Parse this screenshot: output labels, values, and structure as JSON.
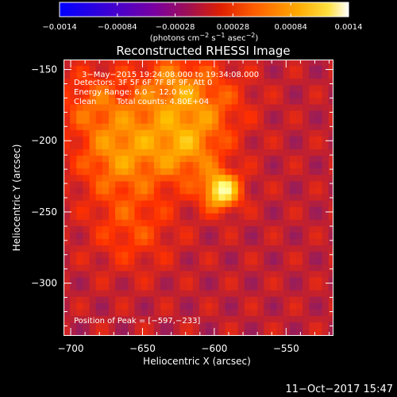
{
  "chart_data": {
    "type": "heatmap",
    "title": "Reconstructed RHESSI Image",
    "xlabel": "Heliocentric X (arcsec)",
    "ylabel": "Heliocentric Y (arcsec)",
    "xlim": [
      -705,
      -517
    ],
    "ylim": [
      -337,
      -143
    ],
    "xticks": [
      -700,
      -650,
      -600,
      -550
    ],
    "xtick_labels": [
      "−700",
      "−650",
      "−600",
      "−550"
    ],
    "yticks": [
      -150,
      -200,
      -250,
      -300
    ],
    "ytick_labels": [
      "−150",
      "−200",
      "−250",
      "−300"
    ],
    "colorbar": {
      "range": [
        -0.0014,
        0.0014
      ],
      "ticks": [
        -0.0014,
        -0.00084,
        -0.00028,
        0.00028,
        0.00084,
        0.0014
      ],
      "tick_labels": [
        "−0.0014",
        "−0.00084",
        "−0.00028",
        "0.00028",
        "0.00084",
        "0.0014"
      ],
      "unit_label": {
        "base": "(photons cm",
        "sup1": "−2",
        "mid1": " s",
        "sup2": "−1",
        "mid2": " asec",
        "sup3": "−2",
        "end": ")"
      },
      "colors": [
        "#0000ff",
        "#6a00a8",
        "#7a1a7a",
        "#c02030",
        "#ff3000",
        "#ff8000",
        "#ffc000",
        "#ffff80",
        "#ffffff"
      ]
    },
    "annotations": {
      "time": "3−May−2015 19:24:08.000 to 19:34:08.000",
      "detectors": "Detectors: 3F 5F 6F 7F 8F 9F, Att 0",
      "energy": "Energy Range: 6.0 − 12.0 keV",
      "clean": "Clean",
      "counts": "Total counts: 4.80E+04",
      "peak": "Position of Peak = [−597,−233]"
    },
    "peak": {
      "x": -597,
      "y": -233
    },
    "sources": [
      {
        "x": -597,
        "y": -233,
        "amplitude": 1.0,
        "sigma": 9
      },
      {
        "x": -640,
        "y": -185,
        "amplitude": 0.45,
        "sigma": 30
      },
      {
        "x": -672,
        "y": -210,
        "amplitude": 0.38,
        "sigma": 20
      },
      {
        "x": -620,
        "y": -205,
        "amplitude": 0.32,
        "sigma": 16
      },
      {
        "x": -660,
        "y": -260,
        "amplitude": 0.3,
        "sigma": 20
      },
      {
        "x": -605,
        "y": -170,
        "amplitude": 0.25,
        "sigma": 18
      },
      {
        "x": -690,
        "y": -170,
        "amplitude": 0.28,
        "sigma": 16
      },
      {
        "x": -630,
        "y": -155,
        "amplitude": 0.22,
        "sigma": 14
      }
    ],
    "background_level": -0.00035
  },
  "footer": {
    "timestamp": "11−Oct−2017 15:47"
  }
}
